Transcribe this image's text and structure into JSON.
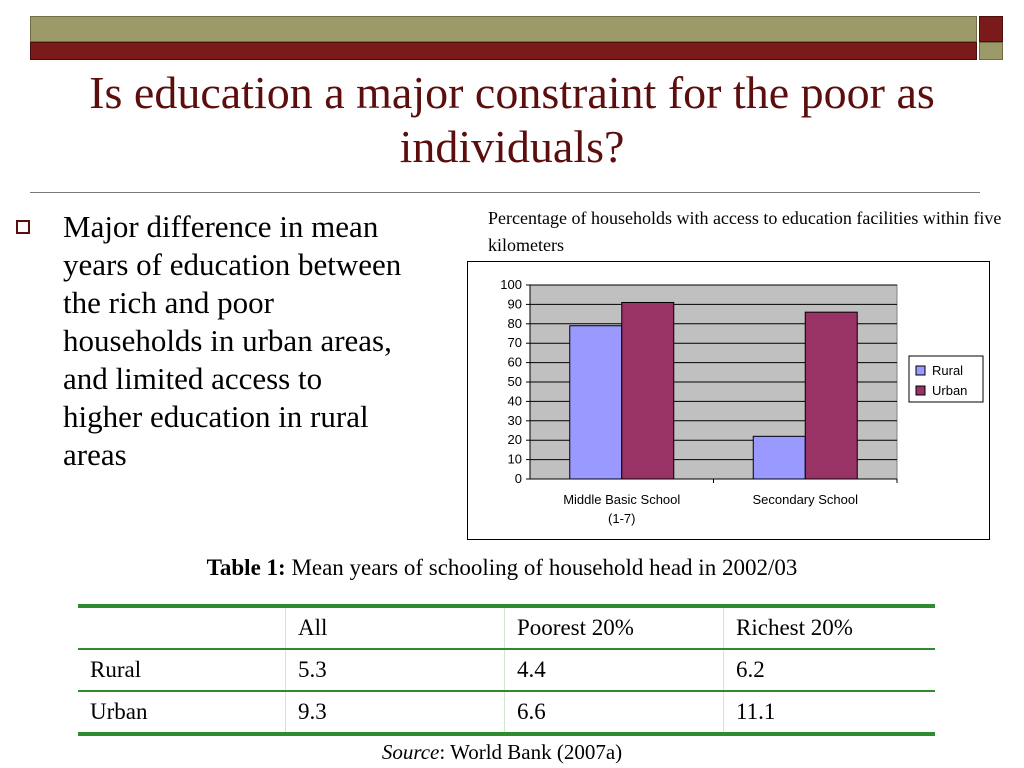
{
  "slide": {
    "title": "Is education a major constraint for the poor as individuals?",
    "bullet": "Major difference in mean years of education between the rich and poor households in urban areas, and limited access to higher education in rural areas"
  },
  "chart_caption": "Percentage of households with access to education facilities within five kilometers",
  "chart_data": {
    "type": "bar",
    "categories": [
      "Middle Basic School (1-7)",
      "Secondary School"
    ],
    "series": [
      {
        "name": "Rural",
        "values": [
          79,
          22
        ],
        "color": "#9999ff"
      },
      {
        "name": "Urban",
        "values": [
          91,
          86
        ],
        "color": "#993366"
      }
    ],
    "yticks": [
      0,
      10,
      20,
      30,
      40,
      50,
      60,
      70,
      80,
      90,
      100
    ],
    "ylim": [
      0,
      100
    ],
    "grid": true,
    "legend": "right",
    "plot_background": "#c0c0c0"
  },
  "table": {
    "caption_label": "Table 1:",
    "caption_text": " Mean years of schooling of household head in 2002/03",
    "headers": [
      "",
      "All",
      "Poorest 20%",
      "Richest 20%"
    ],
    "rows": [
      [
        "Rural",
        "5.3",
        "4.4",
        "6.2"
      ],
      [
        "Urban",
        "9.3",
        "6.6",
        "11.1"
      ]
    ]
  },
  "source": {
    "label": "Source",
    "text": ": World Bank (2007a)"
  },
  "colors": {
    "title": "#5c0d0d",
    "banner_olive": "#9b9a68",
    "banner_maroon": "#7a1a1a",
    "table_rule": "#2e8b2e"
  }
}
